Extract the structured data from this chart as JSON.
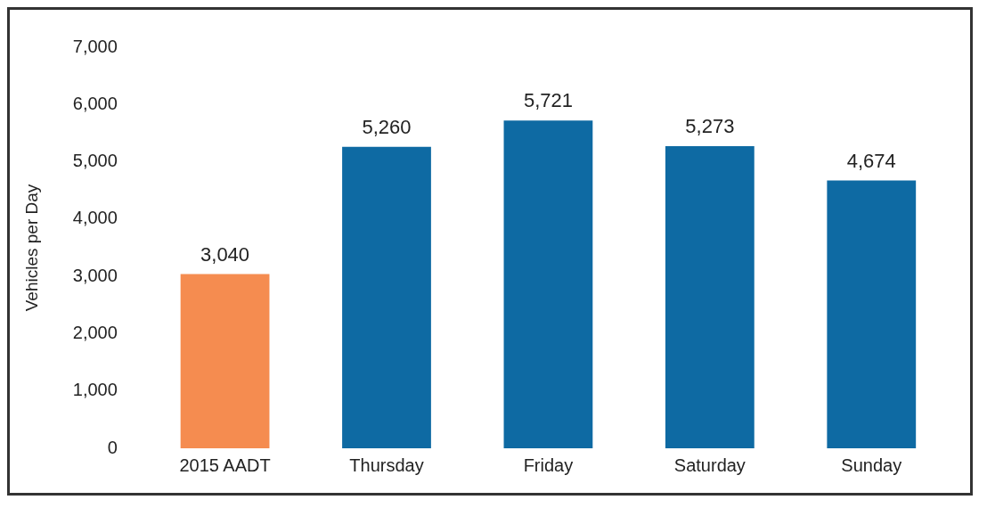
{
  "chart_data": {
    "type": "bar",
    "ylabel": "Vehicles per Day",
    "categories": [
      "2015 AADT",
      "Thursday",
      "Friday",
      "Saturday",
      "Sunday"
    ],
    "values": [
      3040,
      5260,
      5721,
      5273,
      4674
    ],
    "colors": [
      "#f58c50",
      "#0e6aa3",
      "#0e6aa3",
      "#0e6aa3",
      "#0e6aa3"
    ],
    "ylim": [
      0,
      7000
    ],
    "yticks": [
      {
        "value": 0,
        "label": "0"
      },
      {
        "value": 1000,
        "label": "1,000"
      },
      {
        "value": 2000,
        "label": "2,000"
      },
      {
        "value": 3000,
        "label": "3,000"
      },
      {
        "value": 4000,
        "label": "4,000"
      },
      {
        "value": 5000,
        "label": "5,000"
      },
      {
        "value": 6000,
        "label": "6,000"
      },
      {
        "value": 7000,
        "label": "7,000"
      }
    ],
    "value_labels": [
      "3,040",
      "5,260",
      "5,721",
      "5,273",
      "4,674"
    ],
    "grid": false,
    "legend": false
  }
}
